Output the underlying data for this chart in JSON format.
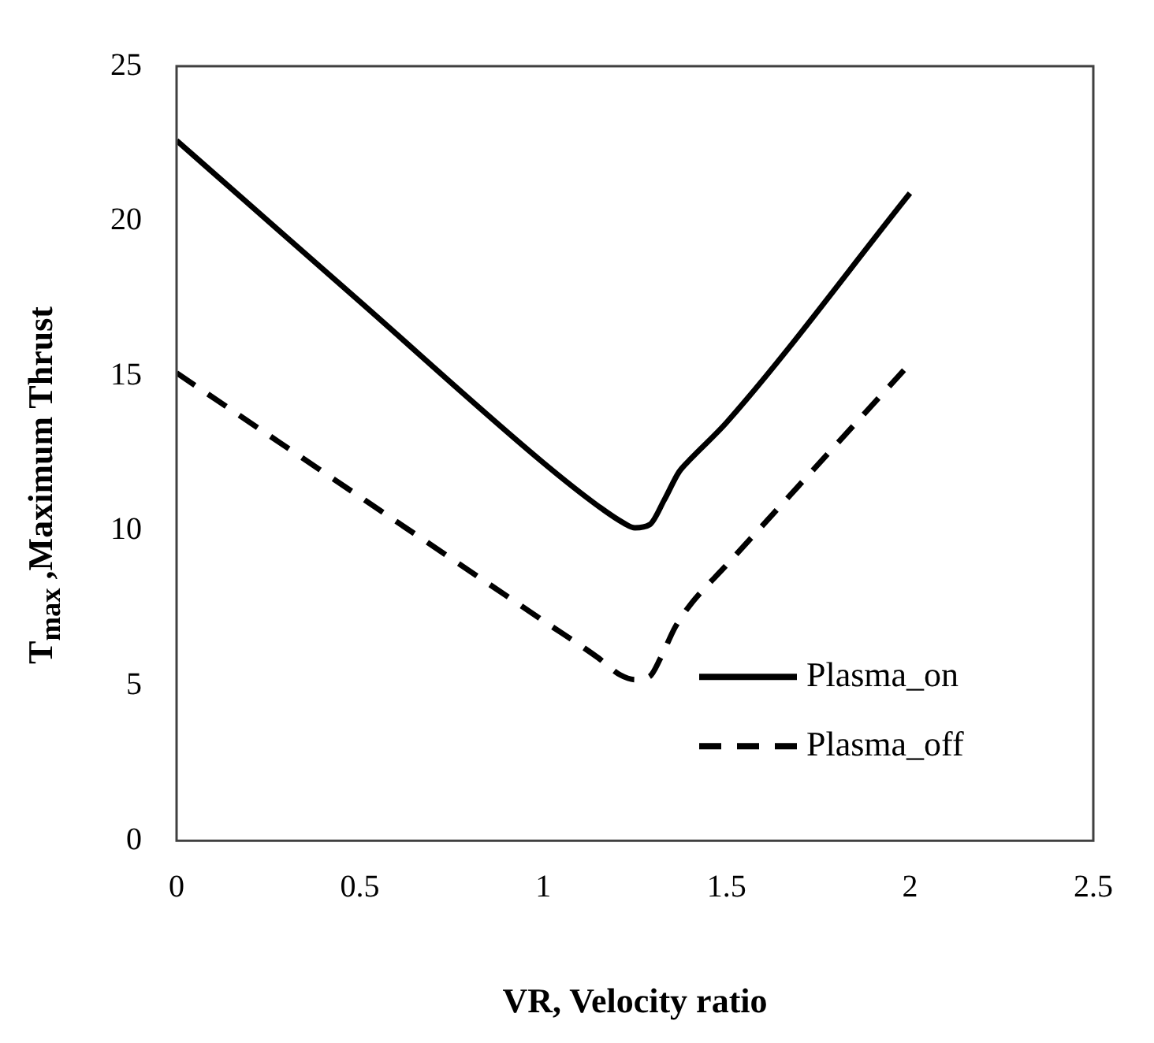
{
  "chart_data": {
    "type": "line",
    "xlabel": "VR, Velocity ratio",
    "ylabel": "T$_{max}$ ,Maximum Thrust",
    "xlim": [
      0,
      2.5
    ],
    "xticks": [
      0,
      0.5,
      1,
      1.5,
      2,
      2.5
    ],
    "ylim": [
      0,
      25
    ],
    "yticks": [
      0,
      5,
      10,
      15,
      20,
      25
    ],
    "grid": false,
    "legend": "bottom right",
    "marker": "none",
    "series": [
      {
        "name": "Plasma_on",
        "color": "#000000",
        "line_style": "solid",
        "x": [
          0,
          0.5,
          1,
          1.15,
          1.22,
          1.25,
          1.29,
          1.33,
          1.37,
          1.4,
          1.5,
          2
        ],
        "values": [
          22.6,
          17.4,
          12.2,
          10.8,
          10.25,
          10.1,
          10.2,
          11,
          11.9,
          12.3,
          13.5,
          20.9
        ]
      },
      {
        "name": "Plasma_off",
        "color": "#000000",
        "line_style": "dashed",
        "x": [
          0,
          0.5,
          1,
          1.15,
          1.21,
          1.25,
          1.29,
          1.32,
          1.36,
          1.4,
          1.5,
          2
        ],
        "values": [
          15.1,
          11.1,
          7.1,
          5.9,
          5.35,
          5.2,
          5.3,
          5.9,
          6.9,
          7.6,
          8.9,
          15.4
        ]
      }
    ]
  }
}
